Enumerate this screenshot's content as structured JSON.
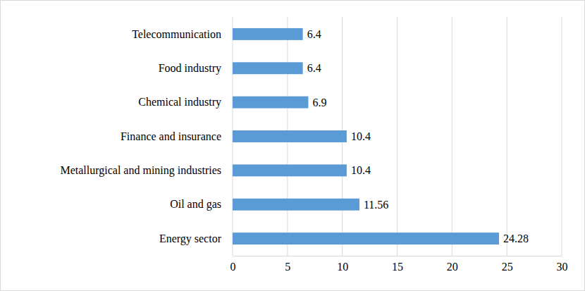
{
  "chart_data": {
    "type": "bar",
    "orientation": "horizontal",
    "categories": [
      "Energy sector",
      "Oil and gas",
      "Metallurgical and mining industries",
      "Finance and insurance",
      "Chemical industry",
      "Food industry",
      "Telecommunication"
    ],
    "values": [
      24.28,
      11.56,
      10.4,
      10.4,
      6.9,
      6.4,
      6.4
    ],
    "color": "#5b9bd5",
    "xlim": [
      0,
      30
    ],
    "xticks": [
      0,
      5,
      10,
      15,
      20,
      25,
      30
    ],
    "grid": true,
    "data_labels": true
  }
}
